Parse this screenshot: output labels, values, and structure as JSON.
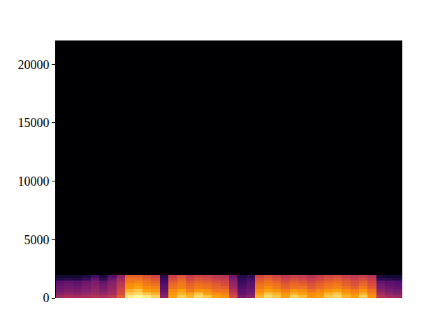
{
  "chart_data": {
    "type": "heatmap",
    "y_bin_edges": [
      0,
      250,
      500,
      750,
      1000,
      1250,
      1500,
      1750,
      2000,
      22050
    ],
    "cells": [
      [
        45,
        48,
        46,
        47,
        50,
        48,
        52,
        65,
        88,
        90,
        88,
        85,
        40,
        80,
        85,
        82,
        86,
        84,
        80,
        78,
        60,
        35,
        40,
        82,
        86,
        84,
        80,
        85,
        83,
        78,
        80,
        84,
        86,
        82,
        80,
        85,
        78,
        50,
        46,
        44
      ],
      [
        40,
        42,
        40,
        43,
        45,
        42,
        46,
        60,
        85,
        86,
        84,
        82,
        35,
        78,
        82,
        80,
        84,
        80,
        76,
        74,
        55,
        30,
        35,
        80,
        84,
        82,
        78,
        82,
        80,
        76,
        78,
        82,
        84,
        80,
        76,
        82,
        74,
        45,
        40,
        38
      ],
      [
        35,
        38,
        36,
        38,
        42,
        38,
        44,
        58,
        82,
        84,
        80,
        78,
        30,
        75,
        80,
        72,
        78,
        76,
        70,
        70,
        50,
        28,
        32,
        76,
        80,
        78,
        72,
        78,
        76,
        70,
        74,
        78,
        80,
        76,
        72,
        78,
        70,
        40,
        36,
        34
      ],
      [
        32,
        34,
        32,
        36,
        40,
        35,
        42,
        55,
        78,
        80,
        76,
        74,
        28,
        70,
        74,
        68,
        72,
        70,
        66,
        64,
        45,
        25,
        30,
        72,
        76,
        72,
        66,
        70,
        70,
        64,
        68,
        72,
        74,
        70,
        66,
        72,
        64,
        36,
        32,
        30
      ],
      [
        30,
        32,
        30,
        34,
        38,
        33,
        40,
        52,
        76,
        78,
        72,
        70,
        26,
        68,
        72,
        66,
        70,
        68,
        64,
        60,
        42,
        22,
        28,
        70,
        72,
        70,
        64,
        68,
        66,
        62,
        66,
        70,
        72,
        66,
        62,
        68,
        60,
        34,
        30,
        28
      ],
      [
        28,
        30,
        28,
        32,
        36,
        30,
        38,
        50,
        72,
        74,
        70,
        66,
        24,
        64,
        70,
        62,
        66,
        64,
        60,
        58,
        40,
        20,
        26,
        66,
        70,
        66,
        60,
        64,
        62,
        58,
        62,
        66,
        68,
        64,
        60,
        64,
        58,
        30,
        28,
        26
      ],
      [
        15,
        16,
        15,
        20,
        30,
        18,
        32,
        45,
        70,
        70,
        66,
        62,
        20,
        60,
        66,
        58,
        62,
        60,
        56,
        54,
        36,
        18,
        22,
        62,
        66,
        62,
        56,
        60,
        58,
        54,
        58,
        62,
        64,
        60,
        56,
        60,
        54,
        18,
        16,
        15
      ],
      [
        10,
        10,
        10,
        14,
        22,
        12,
        26,
        40,
        66,
        66,
        62,
        58,
        16,
        56,
        62,
        54,
        58,
        56,
        52,
        50,
        32,
        14,
        18,
        58,
        62,
        58,
        52,
        56,
        54,
        50,
        54,
        58,
        60,
        56,
        52,
        56,
        50,
        12,
        10,
        10
      ],
      [
        2,
        2,
        2,
        2,
        2,
        2,
        2,
        2,
        2,
        2,
        2,
        2,
        2,
        2,
        2,
        2,
        2,
        2,
        2,
        2,
        2,
        2,
        2,
        2,
        2,
        2,
        2,
        2,
        2,
        2,
        2,
        2,
        2,
        2,
        2,
        2,
        2,
        2,
        2,
        2
      ]
    ],
    "ylim": [
      0,
      22050
    ],
    "yticks": [
      0,
      5000,
      10000,
      15000,
      20000
    ],
    "tick_labels": "y",
    "grid": false
  }
}
